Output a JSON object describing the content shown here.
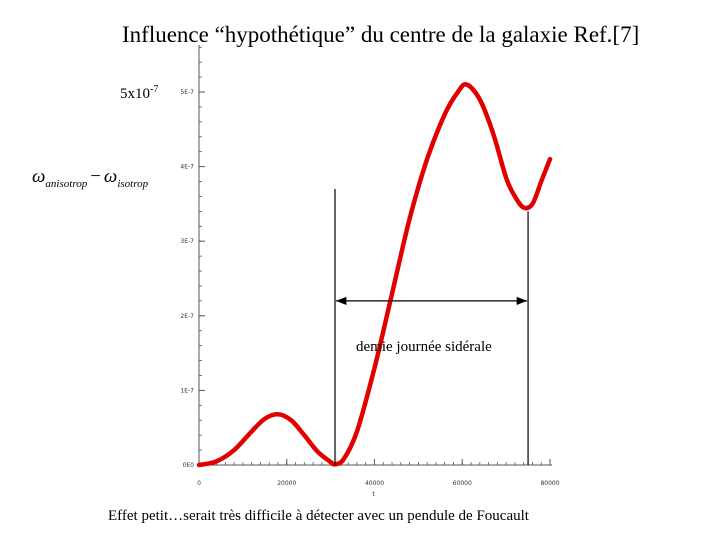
{
  "title": "Influence “hypothétique” du centre de la galaxie  Ref.[7]",
  "y_max_label": {
    "base": "5x10",
    "exponent": "-7"
  },
  "y_axis_label": {
    "w1": "ω",
    "s1": "anisotrop",
    "minus": "−",
    "w2": "ω",
    "s2": "isotrop"
  },
  "caption": "Effet  petit…serait très difficile  à détecter avec un pendule de Foucault",
  "chart_data": {
    "type": "line",
    "xlabel": "t",
    "ylabel": "",
    "xlim": [
      0,
      80000
    ],
    "ylim": [
      0,
      5.2e-07
    ],
    "x_ticks": [
      0,
      20000,
      40000,
      60000,
      80000
    ],
    "x_tick_labels": [
      "0",
      "20000",
      "40000",
      "60000",
      "80000"
    ],
    "y_ticks": [
      0,
      1e-07,
      2e-07,
      3e-07,
      4e-07,
      5e-07
    ],
    "y_tick_labels": [
      "0E0",
      "1E-7",
      "2E-7",
      "3E-7",
      "4E-7",
      "5E-7"
    ],
    "series_color": "#e00000",
    "series": [
      {
        "x": [
          0,
          4000,
          8000,
          12000,
          15000,
          18000,
          21000,
          24000,
          27000,
          30000,
          31000,
          33000,
          36000,
          40000,
          44000,
          48000,
          52000,
          56000,
          59000,
          61000,
          64000,
          67000,
          70000,
          72000,
          74000,
          76000,
          78000,
          80000
        ],
        "y": [
          0,
          5e-09,
          2e-08,
          4.5e-08,
          6.2e-08,
          6.8e-08,
          6e-08,
          4e-08,
          1.8e-08,
          4e-09,
          1e-09,
          8e-09,
          4.5e-08,
          1.3e-07,
          2.3e-07,
          3.3e-07,
          4.1e-07,
          4.7e-07,
          5e-07,
          5.1e-07,
          4.9e-07,
          4.45e-07,
          3.85e-07,
          3.6e-07,
          3.45e-07,
          3.5e-07,
          3.8e-07,
          4.1e-07
        ]
      }
    ],
    "annotations": [
      {
        "type": "vline",
        "x": 31000,
        "y_top": 3.7e-07
      },
      {
        "type": "vline",
        "x": 75000,
        "y_top": 3.4e-07
      },
      {
        "type": "double-arrow",
        "x1": 31000,
        "x2": 75000,
        "y": 2.2e-07
      },
      {
        "type": "text",
        "text": "demie journée sidérale"
      }
    ]
  }
}
